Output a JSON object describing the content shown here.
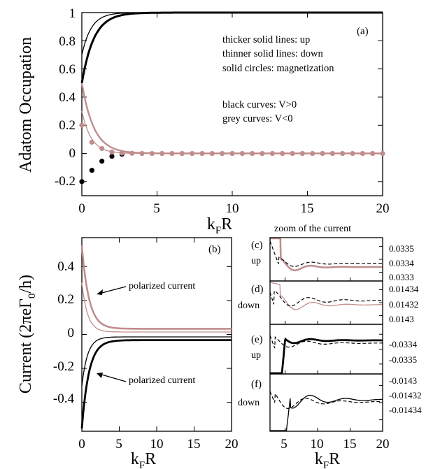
{
  "colors": {
    "black": "#000000",
    "grey": "#c08d8d"
  },
  "panel_a": {
    "label": "(a)",
    "ylabel": "Adatom Occupation",
    "xlabel_main": "k",
    "xlabel_sub": "F",
    "xlabel_tail": "R",
    "xticks": [
      "0",
      "5",
      "10",
      "15",
      "20"
    ],
    "yticks": [
      "1",
      "0.8",
      "0.6",
      "0.4",
      "0.2",
      "0",
      "-0.2"
    ],
    "legend": [
      "thicker solid lines: up",
      "thinner solid lines: down",
      "solid circles: magnetization",
      "black curves: V>0",
      "grey curves: V<0"
    ]
  },
  "panel_b": {
    "label": "(b)",
    "ylabel": "Current (2πeΓ",
    "ylabel_sub": "0",
    "ylabel_tail": "/h)",
    "xlabel_main": "k",
    "xlabel_sub": "F",
    "xlabel_tail": "R",
    "xticks": [
      "0",
      "5",
      "10",
      "15",
      "20"
    ],
    "yticks": [
      "0.4",
      "0.2",
      "0",
      "-0.2",
      "-0.4"
    ],
    "annotation_top": "polarized current",
    "annotation_bottom": "polarized current"
  },
  "zoom": {
    "title": "zoom of the current",
    "xlabel_main": "k",
    "xlabel_sub": "F",
    "xlabel_tail": "R",
    "xticks": [
      "5",
      "10",
      "15",
      "20"
    ],
    "panels": [
      {
        "label": "(c)",
        "side": "up",
        "yticks": [
          "0.0335",
          "0.0334",
          "0.0333"
        ]
      },
      {
        "label": "(d)",
        "side": "down",
        "yticks": [
          "0.01434",
          "0.01432",
          "0.0143"
        ]
      },
      {
        "label": "(e)",
        "side": "up",
        "yticks": [
          "-0.0334",
          "-0.0335"
        ]
      },
      {
        "label": "(f)",
        "side": "down",
        "yticks": [
          "-0.0143",
          "-0.01432",
          "-0.01434"
        ]
      }
    ]
  },
  "chart_data": [
    {
      "type": "line",
      "panel": "(a)",
      "xlabel": "kFR",
      "ylabel": "Adatom Occupation",
      "xlim": [
        0,
        20
      ],
      "ylim": [
        -0.3,
        1.0
      ],
      "series": [
        {
          "name": "up, V>0",
          "color": "#000000",
          "x": [
            0,
            0.5,
            1,
            1.5,
            2,
            3,
            4,
            5,
            10,
            20
          ],
          "y": [
            0.5,
            0.76,
            0.9,
            0.96,
            0.985,
            0.998,
            1.0,
            1.0,
            1.0,
            1.0
          ]
        },
        {
          "name": "down, V>0",
          "color": "#000000",
          "x": [
            0,
            0.5,
            1,
            1.5,
            2,
            3,
            4,
            5,
            10,
            20
          ],
          "y": [
            0.7,
            0.88,
            0.96,
            0.99,
            0.997,
            1.0,
            1.0,
            1.0,
            1.0,
            1.0
          ]
        },
        {
          "name": "up, V<0",
          "color": "#c08d8d",
          "x": [
            0,
            0.5,
            1,
            1.5,
            2,
            3,
            4,
            5,
            10,
            20
          ],
          "y": [
            0.5,
            0.24,
            0.1,
            0.04,
            0.015,
            0.002,
            0.0,
            0.0,
            0.0,
            0.0
          ]
        },
        {
          "name": "down, V<0",
          "color": "#c08d8d",
          "x": [
            0,
            0.5,
            1,
            1.5,
            2,
            3,
            4,
            5,
            10,
            20
          ],
          "y": [
            0.3,
            0.12,
            0.04,
            0.01,
            0.003,
            0.0,
            0.0,
            0.0,
            0.0,
            0.0
          ]
        },
        {
          "name": "magnetization, V>0",
          "color": "#000000",
          "marker": "circle",
          "x": [
            0,
            0.667,
            1.333,
            2.0,
            2.667
          ],
          "y": [
            -0.2,
            -0.12,
            -0.055,
            -0.02,
            -0.005
          ]
        },
        {
          "name": "magnetization, V<0",
          "color": "#c08d8d",
          "marker": "circle",
          "x": [
            0,
            0.667,
            1.333,
            2.0,
            2.667,
            3.333,
            4.0,
            4.667,
            5.333,
            6.0,
            6.667,
            7.333,
            8.0,
            8.667,
            9.333,
            10.0,
            10.667,
            11.333,
            12.0,
            12.667,
            13.333,
            14.0,
            14.667,
            15.333,
            16.0,
            16.667,
            17.333,
            18.0,
            18.667,
            19.333,
            20.0
          ],
          "y": [
            0.2,
            0.08,
            0.035,
            0.01,
            0.003,
            0.001,
            0.0,
            0.0,
            0.0,
            0.0,
            0.0,
            0.0,
            0.0,
            0.0,
            0.0,
            0.0,
            0.0,
            0.0,
            0.0,
            0.0,
            0.0,
            0.0,
            0.0,
            0.0,
            0.0,
            0.0,
            0.0,
            0.0,
            0.0,
            0.0,
            0.0
          ]
        }
      ]
    },
    {
      "type": "line",
      "panel": "(b)",
      "xlabel": "kFR",
      "ylabel": "Current (2πeΓ0/h)",
      "xlim": [
        0,
        20
      ],
      "ylim": [
        -0.57,
        0.57
      ],
      "series": [
        {
          "name": "up, V<0",
          "color": "#c08d8d",
          "x": [
            0,
            0.5,
            1,
            1.5,
            2,
            3,
            4,
            5,
            10,
            20
          ],
          "y": [
            0.52,
            0.3,
            0.17,
            0.1,
            0.065,
            0.042,
            0.036,
            0.034,
            0.0334,
            0.0334
          ]
        },
        {
          "name": "down, V<0",
          "color": "#c08d8d",
          "x": [
            0,
            0.5,
            1,
            1.5,
            2,
            3,
            4,
            5,
            10,
            20
          ],
          "y": [
            0.3,
            0.15,
            0.08,
            0.045,
            0.028,
            0.018,
            0.015,
            0.0145,
            0.01432,
            0.01432
          ]
        },
        {
          "name": "up, V>0",
          "color": "#000000",
          "x": [
            0,
            0.5,
            1,
            1.5,
            2,
            3,
            4,
            5,
            10,
            20
          ],
          "y": [
            -0.55,
            -0.32,
            -0.18,
            -0.11,
            -0.07,
            -0.045,
            -0.037,
            -0.0345,
            -0.0334,
            -0.0334
          ]
        },
        {
          "name": "down, V>0",
          "color": "#000000",
          "x": [
            0,
            0.5,
            1,
            1.5,
            2,
            3,
            4,
            5,
            10,
            20
          ],
          "y": [
            -0.3,
            -0.15,
            -0.08,
            -0.045,
            -0.028,
            -0.018,
            -0.015,
            -0.0145,
            -0.01432,
            -0.01432
          ]
        }
      ]
    }
  ]
}
